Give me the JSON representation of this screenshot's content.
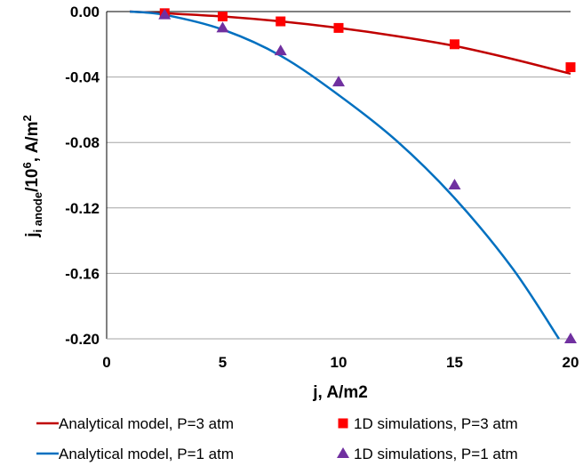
{
  "chart_data": {
    "type": "line",
    "xlabel": "j, A/m2",
    "ylabel": {
      "main": "j",
      "sub": "i anode",
      "mid": "/10",
      "sup1": "6",
      "unit": ", A/m",
      "sup2": "2"
    },
    "xlim": [
      0,
      20
    ],
    "ylim": [
      -0.2,
      0.0
    ],
    "x_ticks": [
      "0",
      "5",
      "10",
      "15",
      "20"
    ],
    "y_ticks": [
      "0.00",
      "-0.04",
      "-0.08",
      "-0.12",
      "-0.16",
      "-0.20"
    ],
    "grid": "horizontal",
    "legend_position": "bottom",
    "series": [
      {
        "name": "Analytical model, P=3 atm",
        "kind": "line",
        "color": "#c00000",
        "x": [
          1,
          2.5,
          5,
          7.5,
          10,
          12.5,
          15,
          17.5,
          20
        ],
        "y": [
          0.0,
          -0.001,
          -0.003,
          -0.006,
          -0.01,
          -0.015,
          -0.021,
          -0.029,
          -0.038
        ]
      },
      {
        "name": "1D simulations, P=3 atm",
        "kind": "scatter",
        "marker": "square",
        "color": "#ff0000",
        "x": [
          2.5,
          5,
          7.5,
          10,
          15,
          20
        ],
        "y": [
          -0.001,
          -0.003,
          -0.006,
          -0.01,
          -0.02,
          -0.034
        ]
      },
      {
        "name": "Analytical model, P=1 atm",
        "kind": "line",
        "color": "#0070c0",
        "x": [
          1,
          2.5,
          5,
          7.5,
          10,
          12.5,
          15,
          17.5,
          19.5
        ],
        "y": [
          0.0,
          -0.002,
          -0.011,
          -0.027,
          -0.051,
          -0.079,
          -0.114,
          -0.157,
          -0.2
        ]
      },
      {
        "name": "1D simulations, P=1 atm",
        "kind": "scatter",
        "marker": "triangle",
        "color": "#7030a0",
        "x": [
          2.5,
          5,
          7.5,
          10,
          15,
          20
        ],
        "y": [
          -0.002,
          -0.01,
          -0.024,
          -0.043,
          -0.106,
          -0.2
        ]
      }
    ]
  }
}
